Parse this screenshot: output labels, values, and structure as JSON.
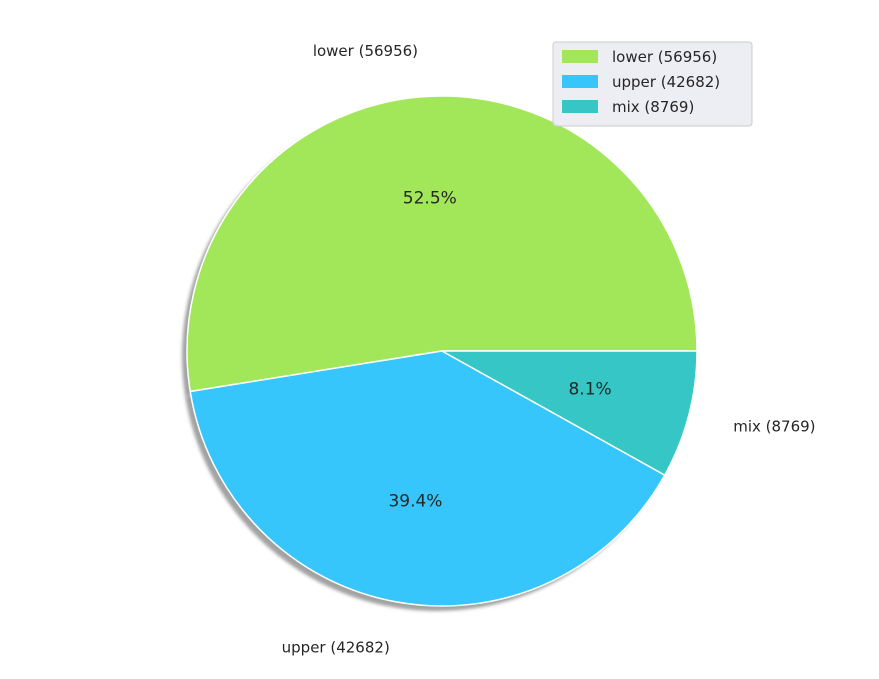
{
  "chart_data": {
    "type": "pie",
    "title": "",
    "slices": [
      {
        "label": "lower (56956)",
        "value": 56956,
        "percent_label": "52.5%",
        "color": "#a2e65a"
      },
      {
        "label": "upper (42682)",
        "value": 42682,
        "percent_label": "39.4%",
        "color": "#36c6fc"
      },
      {
        "label": "mix (8769)",
        "value": 8769,
        "percent_label": "8.1%",
        "color": "#36c6c6"
      }
    ],
    "start_angle_deg": 0,
    "direction": "counterclockwise",
    "shadow": true,
    "legend": {
      "placement": "top-right",
      "entries": [
        "lower (56956)",
        "upper (42682)",
        "mix (8769)"
      ]
    }
  }
}
